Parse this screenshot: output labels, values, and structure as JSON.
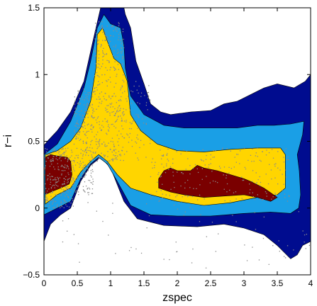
{
  "chart_data": {
    "type": "contour-scatter",
    "xlabel": "zspec",
    "ylabel": "r−i",
    "xlim": [
      0,
      4
    ],
    "ylim": [
      -0.5,
      1.5
    ],
    "x_ticks": [
      0,
      0.5,
      1,
      1.5,
      2,
      2.5,
      3,
      3.5,
      4
    ],
    "x_tick_labels": [
      "0",
      "0.5",
      "1",
      "1.5",
      "2",
      "2.5",
      "3",
      "3.5",
      "4"
    ],
    "y_ticks": [
      -0.5,
      0,
      0.5,
      1,
      1.5
    ],
    "y_tick_labels": [
      "−0.5",
      "0",
      "0.5",
      "1",
      "1.5"
    ],
    "grid": false,
    "colors": {
      "level1": "#000c8f",
      "level2": "#1a9fe6",
      "level3": "#ffd500",
      "level4": "#7a0000",
      "points": "#8a8a8a",
      "outline": "#000000"
    },
    "contour_levels": [
      {
        "level": 1,
        "polygons": [
          [
            [
              0,
              -0.25
            ],
            [
              0.1,
              -0.12
            ],
            [
              0.25,
              -0.05
            ],
            [
              0.4,
              0.0
            ],
            [
              0.55,
              0.2
            ],
            [
              0.7,
              0.32
            ],
            [
              0.85,
              0.38
            ],
            [
              1.0,
              0.3
            ],
            [
              1.2,
              0.05
            ],
            [
              1.4,
              -0.08
            ],
            [
              1.8,
              -0.13
            ],
            [
              2.3,
              -0.14
            ],
            [
              2.7,
              -0.12
            ],
            [
              3.0,
              -0.15
            ],
            [
              3.3,
              -0.2
            ],
            [
              3.5,
              -0.28
            ],
            [
              3.7,
              -0.38
            ],
            [
              3.8,
              -0.35
            ],
            [
              3.88,
              -0.28
            ],
            [
              4.0,
              -0.25
            ],
            [
              4.0,
              1.0
            ],
            [
              3.92,
              0.95
            ],
            [
              3.75,
              0.9
            ],
            [
              3.5,
              0.93
            ],
            [
              3.3,
              0.9
            ],
            [
              3.1,
              0.85
            ],
            [
              2.9,
              0.8
            ],
            [
              2.7,
              0.78
            ],
            [
              2.5,
              0.73
            ],
            [
              2.2,
              0.72
            ],
            [
              1.9,
              0.7
            ],
            [
              1.75,
              0.72
            ],
            [
              1.6,
              0.78
            ],
            [
              1.5,
              0.93
            ],
            [
              1.38,
              1.1
            ],
            [
              1.3,
              1.35
            ],
            [
              1.22,
              1.45
            ],
            [
              1.2,
              1.5
            ],
            [
              0.85,
              1.5
            ],
            [
              0.72,
              1.22
            ],
            [
              0.6,
              0.95
            ],
            [
              0.4,
              0.72
            ],
            [
              0.2,
              0.58
            ],
            [
              0.05,
              0.5
            ],
            [
              0,
              0.47
            ]
          ]
        ]
      },
      {
        "level": 2,
        "polygons": [
          [
            [
              0,
              -0.05
            ],
            [
              0.2,
              0.0
            ],
            [
              0.4,
              0.05
            ],
            [
              0.55,
              0.22
            ],
            [
              0.7,
              0.33
            ],
            [
              0.82,
              0.38
            ],
            [
              0.95,
              0.33
            ],
            [
              1.1,
              0.2
            ],
            [
              1.3,
              0.02
            ],
            [
              1.6,
              -0.05
            ],
            [
              2.0,
              -0.06
            ],
            [
              2.5,
              -0.06
            ],
            [
              3.0,
              -0.04
            ],
            [
              3.4,
              -0.03
            ],
            [
              3.7,
              -0.04
            ],
            [
              3.82,
              0.0
            ],
            [
              3.85,
              0.1
            ],
            [
              3.83,
              0.28
            ],
            [
              3.8,
              0.4
            ],
            [
              3.88,
              0.55
            ],
            [
              3.9,
              0.65
            ],
            [
              3.7,
              0.63
            ],
            [
              3.45,
              0.62
            ],
            [
              3.2,
              0.62
            ],
            [
              2.9,
              0.6
            ],
            [
              2.5,
              0.6
            ],
            [
              2.1,
              0.6
            ],
            [
              1.8,
              0.62
            ],
            [
              1.5,
              0.7
            ],
            [
              1.3,
              0.84
            ],
            [
              1.22,
              1.05
            ],
            [
              1.2,
              1.22
            ],
            [
              1.15,
              1.35
            ],
            [
              1.0,
              1.38
            ],
            [
              0.9,
              1.45
            ],
            [
              0.8,
              1.35
            ],
            [
              0.7,
              1.1
            ],
            [
              0.6,
              0.9
            ],
            [
              0.4,
              0.65
            ],
            [
              0.2,
              0.48
            ],
            [
              0,
              0.4
            ]
          ]
        ]
      },
      {
        "level": 3,
        "polygons": [
          [
            [
              0.02,
              0.03
            ],
            [
              0.2,
              0.1
            ],
            [
              0.4,
              0.15
            ],
            [
              0.55,
              0.27
            ],
            [
              0.7,
              0.35
            ],
            [
              0.82,
              0.4
            ],
            [
              0.95,
              0.35
            ],
            [
              1.1,
              0.25
            ],
            [
              1.3,
              0.15
            ],
            [
              1.6,
              0.1
            ],
            [
              2.0,
              0.05
            ],
            [
              2.4,
              0.02
            ],
            [
              2.8,
              0.04
            ],
            [
              3.2,
              0.08
            ],
            [
              3.5,
              0.1
            ],
            [
              3.62,
              0.15
            ],
            [
              3.62,
              0.4
            ],
            [
              3.55,
              0.45
            ],
            [
              3.2,
              0.45
            ],
            [
              2.8,
              0.44
            ],
            [
              2.4,
              0.42
            ],
            [
              2.0,
              0.43
            ],
            [
              1.7,
              0.48
            ],
            [
              1.45,
              0.58
            ],
            [
              1.3,
              0.7
            ],
            [
              1.25,
              0.95
            ],
            [
              1.15,
              1.08
            ],
            [
              1.05,
              1.12
            ],
            [
              0.95,
              1.25
            ],
            [
              0.88,
              1.35
            ],
            [
              0.8,
              1.3
            ],
            [
              0.78,
              1.05
            ],
            [
              0.7,
              0.8
            ],
            [
              0.55,
              0.6
            ],
            [
              0.4,
              0.5
            ],
            [
              0.2,
              0.43
            ],
            [
              0.02,
              0.4
            ]
          ]
        ]
      },
      {
        "level": 4,
        "polygons": [
          [
            [
              0.02,
              0.1
            ],
            [
              0.1,
              0.12
            ],
            [
              0.25,
              0.15
            ],
            [
              0.38,
              0.18
            ],
            [
              0.42,
              0.25
            ],
            [
              0.4,
              0.35
            ],
            [
              0.35,
              0.38
            ],
            [
              0.2,
              0.39
            ],
            [
              0.1,
              0.4
            ],
            [
              0.02,
              0.38
            ]
          ],
          [
            [
              1.72,
              0.15
            ],
            [
              1.9,
              0.12
            ],
            [
              2.1,
              0.1
            ],
            [
              2.4,
              0.08
            ],
            [
              2.7,
              0.09
            ],
            [
              3.0,
              0.1
            ],
            [
              3.2,
              0.08
            ],
            [
              3.4,
              0.05
            ],
            [
              3.5,
              0.08
            ],
            [
              3.3,
              0.15
            ],
            [
              3.1,
              0.2
            ],
            [
              3.0,
              0.22
            ],
            [
              2.8,
              0.25
            ],
            [
              2.6,
              0.28
            ],
            [
              2.4,
              0.3
            ],
            [
              2.3,
              0.32
            ],
            [
              2.2,
              0.28
            ],
            [
              2.0,
              0.28
            ],
            [
              1.9,
              0.3
            ],
            [
              1.8,
              0.28
            ],
            [
              1.72,
              0.22
            ]
          ]
        ]
      }
    ],
    "scatter_cloud": {
      "series": "points",
      "regions": [
        {
          "x": [
            0.0,
            0.45
          ],
          "y": [
            0.0,
            0.45
          ],
          "n": 260
        },
        {
          "x": [
            0.45,
            0.75
          ],
          "y": [
            0.1,
            0.9
          ],
          "n": 260
        },
        {
          "x": [
            0.75,
            1.2
          ],
          "y": [
            0.35,
            1.4
          ],
          "n": 360
        },
        {
          "x": [
            1.2,
            1.6
          ],
          "y": [
            0.35,
            0.95
          ],
          "n": 80
        },
        {
          "x": [
            1.6,
            3.7
          ],
          "y": [
            0.05,
            0.45
          ],
          "n": 220
        },
        {
          "x": [
            0.0,
            4.0
          ],
          "y": [
            -0.45,
            0.05
          ],
          "n": 70
        }
      ]
    }
  }
}
